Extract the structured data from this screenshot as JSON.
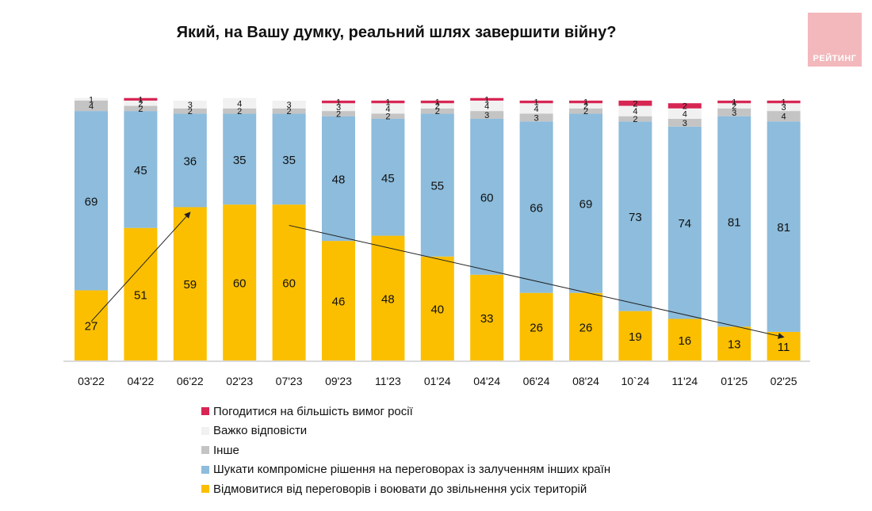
{
  "title": "Який, на Вашу думку, реальний шлях завершити війну?",
  "logo_text": "РЕЙТИНГ",
  "chart_data": {
    "type": "bar",
    "stacked": true,
    "categories": [
      "03'22",
      "04'22",
      "06'22",
      "02'23",
      "07'23",
      "09'23",
      "11'23",
      "01'24",
      "04'24",
      "06'24",
      "08'24",
      "10`24",
      "11'24",
      "01'25",
      "02'25"
    ],
    "series": [
      {
        "name": "Відмовитися від переговорів і воювати до звільнення усіх територій",
        "color": "#fbbf00",
        "values": [
          27,
          51,
          59,
          60,
          60,
          46,
          48,
          40,
          33,
          26,
          26,
          19,
          16,
          13,
          11
        ]
      },
      {
        "name": "Шукати компромісне рішення на переговорах із залученням інших країн",
        "color": "#8dbcdc",
        "values": [
          69,
          45,
          36,
          35,
          35,
          48,
          45,
          55,
          60,
          66,
          69,
          73,
          74,
          81,
          81
        ]
      },
      {
        "name": "Інше",
        "color": "#c4c4c4",
        "values": [
          4,
          2,
          2,
          2,
          2,
          2,
          2,
          2,
          3,
          3,
          2,
          2,
          3,
          3,
          4
        ]
      },
      {
        "name": "Важко відповісти",
        "color": "#f1f1f1",
        "values": [
          1,
          2,
          3,
          4,
          3,
          3,
          4,
          2,
          4,
          4,
          2,
          4,
          4,
          2,
          3
        ]
      },
      {
        "name": "Погодитися на більшість вимог росії",
        "color": "#d72654",
        "values": [
          0,
          1,
          0,
          0,
          0,
          1,
          1,
          1,
          1,
          1,
          1,
          2,
          2,
          1,
          1
        ]
      }
    ],
    "ylim": [
      0,
      100
    ],
    "grid": false,
    "legend_position": "bottom",
    "annotations": [
      {
        "type": "arrow",
        "from": {
          "x": "03'22",
          "y": 15
        },
        "to": {
          "x": "06'22",
          "y": 57
        }
      },
      {
        "type": "arrow",
        "from": {
          "x": "07'23",
          "y": 52
        },
        "to": {
          "x": "02'25",
          "y": 9
        }
      }
    ]
  }
}
